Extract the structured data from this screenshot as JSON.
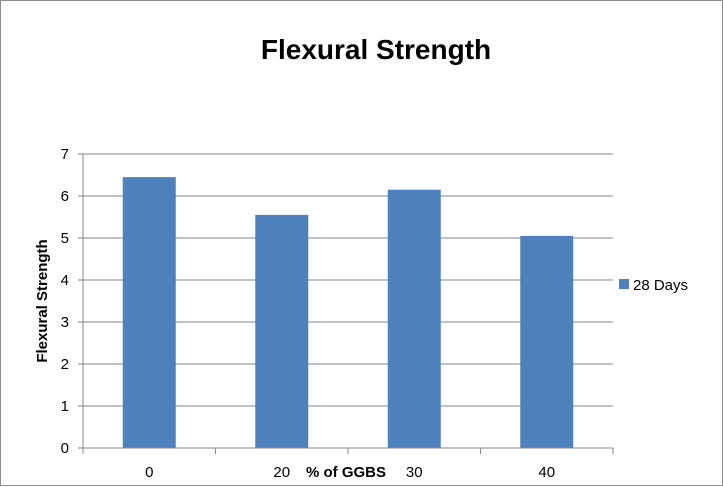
{
  "chart_data": {
    "type": "bar",
    "title": "Flexural Strength",
    "xlabel": "% of GGBS",
    "ylabel": "Flexural Strength",
    "categories": [
      "0",
      "20",
      "30",
      "40"
    ],
    "series": [
      {
        "name": "28 Days",
        "values": [
          6.45,
          5.55,
          6.15,
          5.05
        ],
        "color": "#4f81bd"
      }
    ],
    "ylim": [
      0,
      7
    ],
    "yticks": [
      0,
      1,
      2,
      3,
      4,
      5,
      6,
      7
    ],
    "grid": true,
    "legend_position": "right"
  }
}
